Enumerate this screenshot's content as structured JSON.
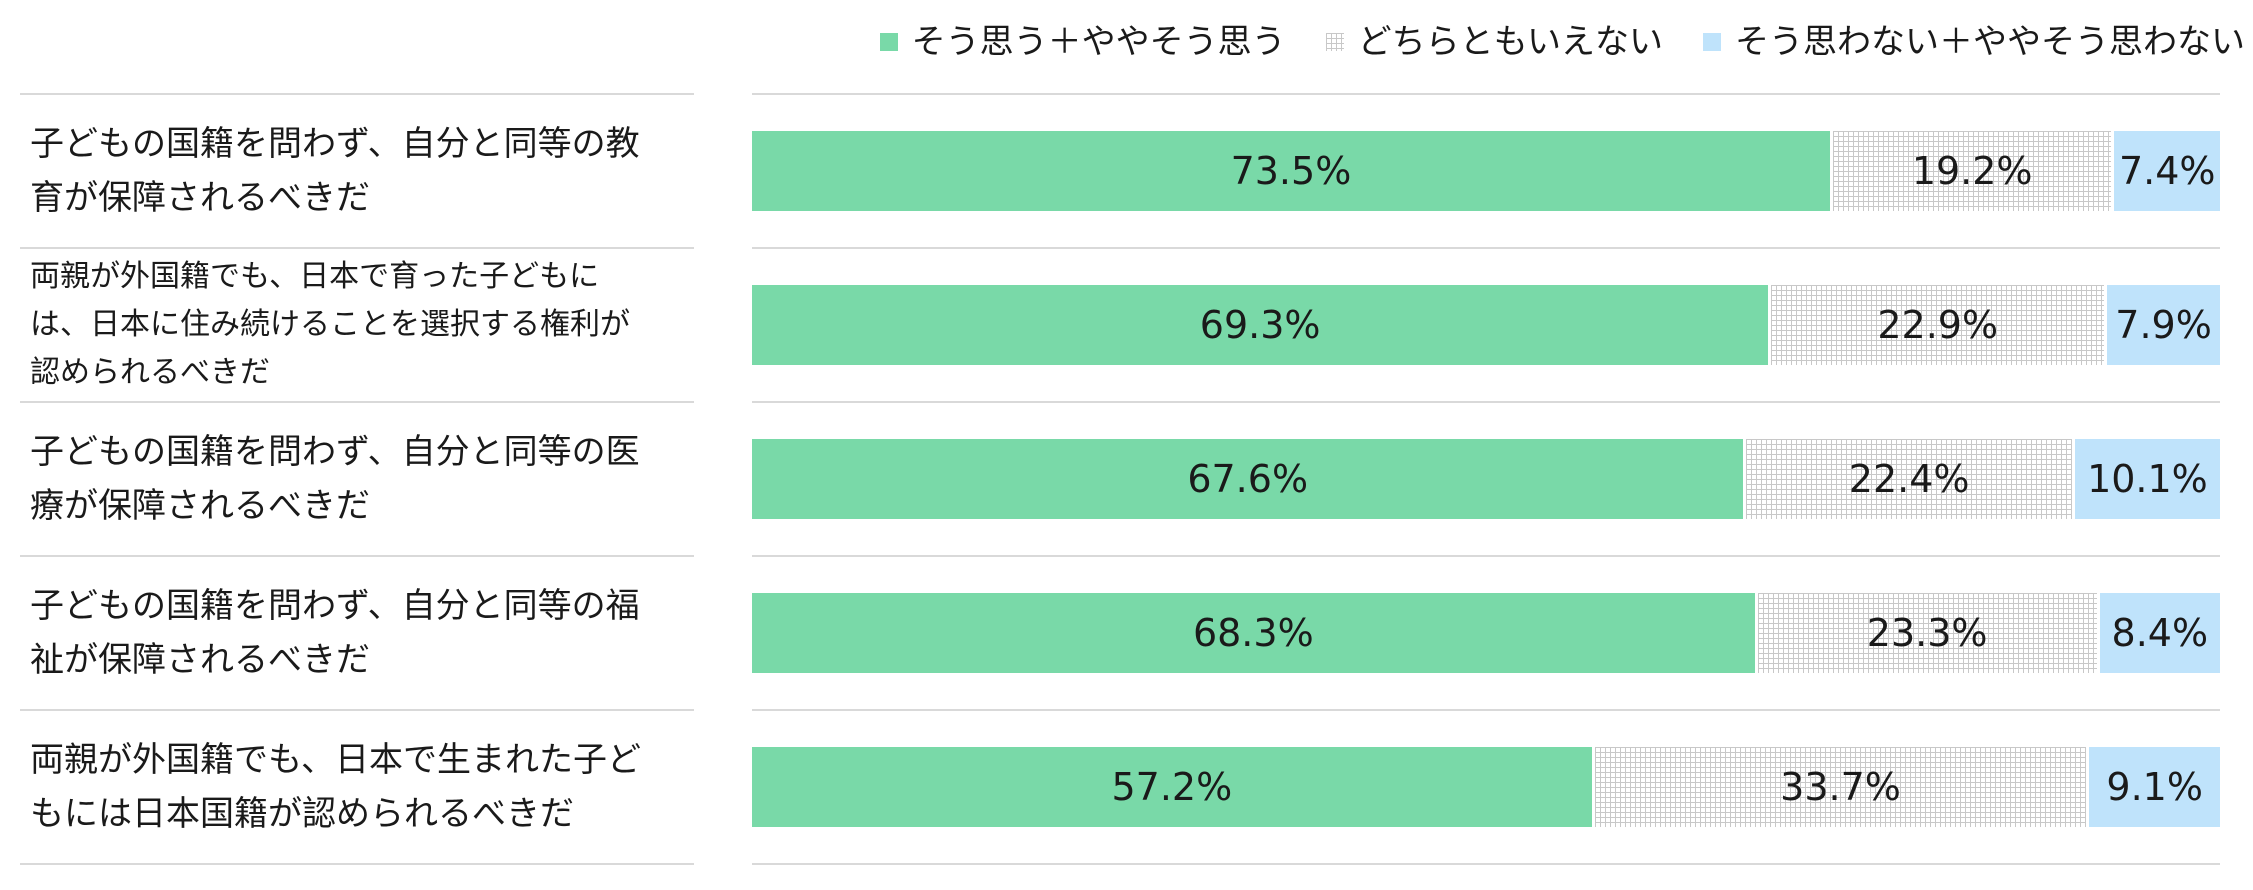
{
  "chart_data": {
    "type": "bar",
    "orientation": "horizontal",
    "stacked": true,
    "normalized": true,
    "title": "",
    "xlabel": "",
    "ylabel": "",
    "legend_position": "top-right",
    "categories": [
      "子どもの国籍を問わず、自分と同等の教育が保障されるべきだ",
      "両親が外国籍でも、日本で育った子どもには、日本に住み続けることを選択する権利が認められるべきだ",
      "子どもの国籍を問わず、自分と同等の医療が保障されるべきだ",
      "子どもの国籍を問わず、自分と同等の福祉が保障されるべきだ",
      "両親が外国籍でも、日本で生まれた子どもには日本国籍が認められるべきだ"
    ],
    "category_lines": [
      [
        "子どもの国籍を問わず、自分と同等の教",
        "育が保障されるべきだ"
      ],
      [
        "両親が外国籍でも、日本で育った子どもに",
        "は、日本に住み続けることを選択する権利が",
        "認められるべきだ"
      ],
      [
        "子どもの国籍を問わず、自分と同等の医",
        "療が保障されるべきだ"
      ],
      [
        "子どもの国籍を問わず、自分と同等の福",
        "祉が保障されるべきだ"
      ],
      [
        "両親が外国籍でも、日本で生まれた子ど",
        "もには日本国籍が認められるべきだ"
      ]
    ],
    "series": [
      {
        "name": "そう思う＋ややそう思う",
        "color": "#79d9a8",
        "pattern": "solid",
        "values": [
          73.5,
          69.3,
          67.6,
          68.3,
          57.2
        ],
        "value_labels": [
          "73.5%",
          "69.3%",
          "67.6%",
          "68.3%",
          "57.2%"
        ]
      },
      {
        "name": "どちらともいえない",
        "color": "#c8c8c8",
        "pattern": "grid",
        "values": [
          19.2,
          22.9,
          22.4,
          23.3,
          33.7
        ],
        "value_labels": [
          "19.2%",
          "22.9%",
          "22.4%",
          "23.3%",
          "33.7%"
        ]
      },
      {
        "name": "そう思わない＋ややそう思わない",
        "color": "#bfe3fb",
        "pattern": "solid",
        "values": [
          7.4,
          7.9,
          10.1,
          8.4,
          9.1
        ],
        "value_labels": [
          "7.4%",
          "7.9%",
          "10.1%",
          "8.4%",
          "9.1%"
        ]
      }
    ]
  }
}
